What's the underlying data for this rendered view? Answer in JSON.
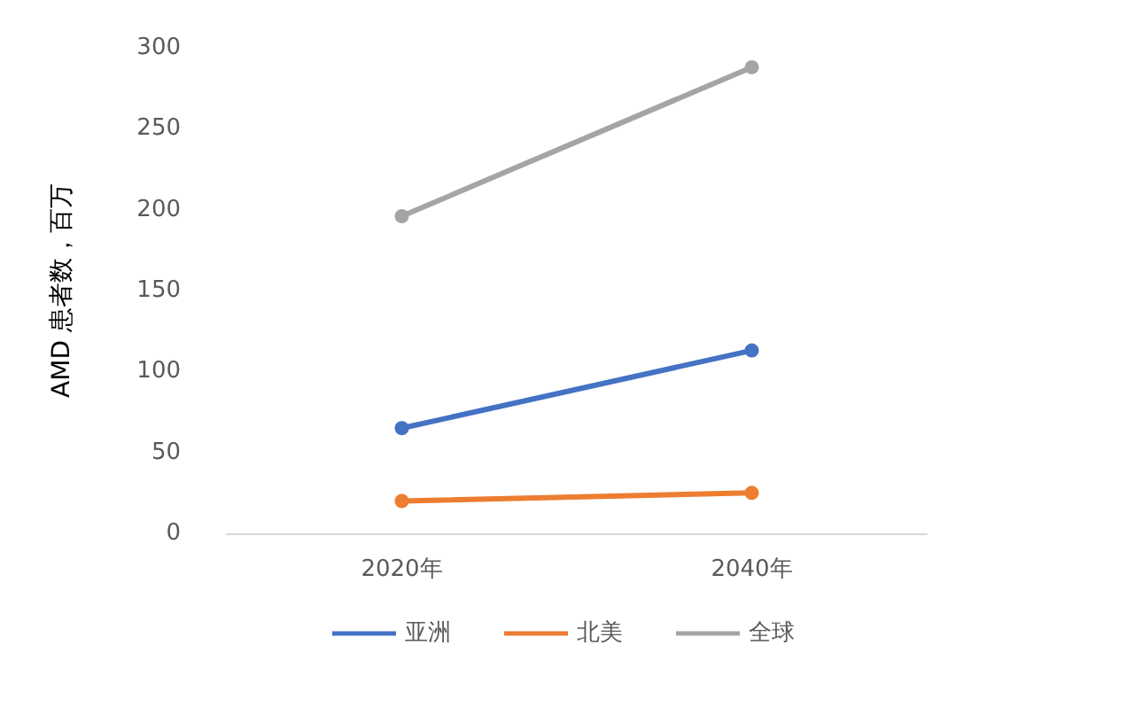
{
  "chart_data": {
    "type": "line",
    "ylabel": "AMD 患者数，百万",
    "categories": [
      "2020年",
      "2040年"
    ],
    "series": [
      {
        "name": "亚洲",
        "color": "#4472c4",
        "values": [
          65,
          113
        ]
      },
      {
        "name": "北美",
        "color": "#ed7d31",
        "values": [
          20,
          25
        ]
      },
      {
        "name": "全球",
        "color": "#a5a5a5",
        "values": [
          196,
          288
        ]
      }
    ],
    "ylim": [
      0,
      300
    ],
    "yticks": [
      0,
      50,
      100,
      150,
      200,
      250,
      300
    ],
    "grid": false,
    "legend": "bottom",
    "marker": "circle",
    "line_style": "solid"
  }
}
